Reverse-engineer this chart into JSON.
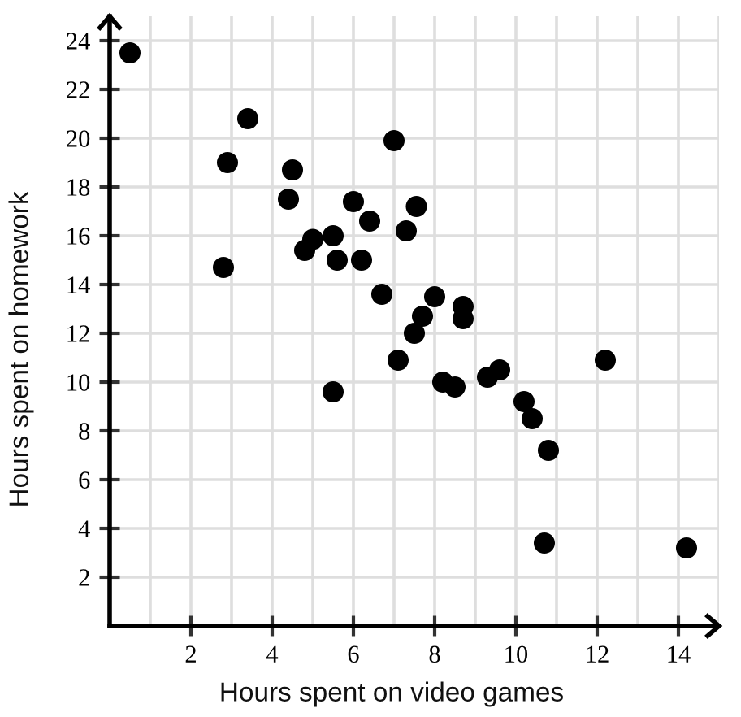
{
  "chart_data": {
    "type": "scatter",
    "xlabel": "Hours spent on video games",
    "ylabel": "Hours spent on homework",
    "x": [
      0.5,
      3.4,
      2.9,
      4.5,
      4.4,
      7.0,
      6.0,
      6.4,
      7.55,
      7.3,
      5.5,
      4.8,
      5.0,
      5.6,
      6.2,
      2.8,
      6.7,
      8.0,
      8.7,
      8.7,
      7.7,
      7.5,
      7.1,
      5.5,
      8.2,
      8.5,
      9.3,
      9.6,
      12.2,
      10.2,
      10.4,
      10.8,
      10.7,
      14.2
    ],
    "values": [
      23.5,
      20.8,
      19.0,
      18.7,
      17.5,
      19.9,
      17.4,
      16.6,
      17.2,
      16.2,
      16.0,
      15.4,
      15.85,
      15.0,
      15.0,
      14.7,
      13.6,
      13.5,
      13.1,
      12.6,
      12.7,
      12.0,
      10.9,
      9.6,
      10.0,
      9.8,
      10.2,
      10.5,
      10.9,
      9.2,
      8.5,
      7.2,
      3.4,
      3.2
    ],
    "color": "#000000",
    "marker": "circle",
    "xlim": [
      0,
      15
    ],
    "ylim": [
      0,
      25
    ],
    "xticks": [
      {
        "value": 1,
        "label": null
      },
      2,
      {
        "value": 3,
        "label": null
      },
      4,
      {
        "value": 5,
        "label": null
      },
      6,
      {
        "value": 7,
        "label": null
      },
      8,
      {
        "value": 9,
        "label": null
      },
      10,
      {
        "value": 11,
        "label": null
      },
      12,
      {
        "value": 13,
        "label": null
      },
      14,
      {
        "value": 15,
        "label": null
      }
    ],
    "yticks": [
      2,
      4,
      6,
      8,
      10,
      12,
      14,
      16,
      18,
      20,
      22,
      24
    ],
    "grid": true
  }
}
